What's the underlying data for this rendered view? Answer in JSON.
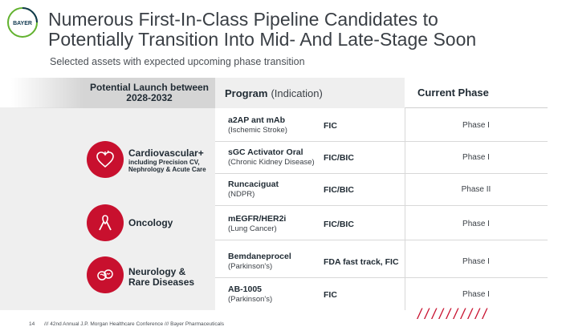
{
  "logo": {
    "text": "BAYER",
    "icon": "bayer-cross-logo"
  },
  "header": {
    "title_line1": "Numerous First-In-Class Pipeline Candidates to",
    "title_line2": "Potentially Transition Into Mid- And Late-Stage Soon",
    "subtitle": "Selected assets with expected upcoming phase transition"
  },
  "table": {
    "col_launch": "Potential Launch between 2028-2032",
    "col_program": "Program",
    "col_program_sub": "(Indication)",
    "col_phase": "Current Phase",
    "rows": [
      {
        "name": "a2AP ant mAb",
        "indication": "(Ischemic Stroke)",
        "status": "FIC",
        "phase": "Phase I"
      },
      {
        "name": "sGC Activator Oral",
        "indication": "(Chronic Kidney Disease)",
        "status": "FIC/BIC",
        "phase": "Phase I"
      },
      {
        "name": "Runcaciguat",
        "indication": "(NDPR)",
        "status": "FIC/BIC",
        "phase": "Phase II"
      },
      {
        "name": "mEGFR/HER2i",
        "indication": "(Lung Cancer)",
        "status": "FIC/BIC",
        "phase": "Phase I"
      },
      {
        "name": "Bemdaneprocel",
        "indication": "(Parkinson's)",
        "status": "FDA fast track, FIC",
        "phase": "Phase I"
      },
      {
        "name": "AB-1005",
        "indication": "(Parkinson's)",
        "status": "FIC",
        "phase": "Phase I"
      }
    ]
  },
  "areas": [
    {
      "label": "Cardiovascular+",
      "sub": "including Precision CV, Nephrology  & Acute Care",
      "icon": "heart-icon"
    },
    {
      "label": "Oncology",
      "sub": "",
      "icon": "ribbon-icon"
    },
    {
      "label": "Neurology & Rare Diseases",
      "sub": "",
      "icon": "brain-icon"
    }
  ],
  "footer": {
    "page": "14",
    "text": "/// 42nd Annual J.P. Morgan Healthcare Conference /// Bayer Pharmaceuticals",
    "decor": "//////////"
  },
  "colors": {
    "accent": "#c8102e",
    "header_gray": "#d5d5d5",
    "panel_gray": "#efefef"
  }
}
